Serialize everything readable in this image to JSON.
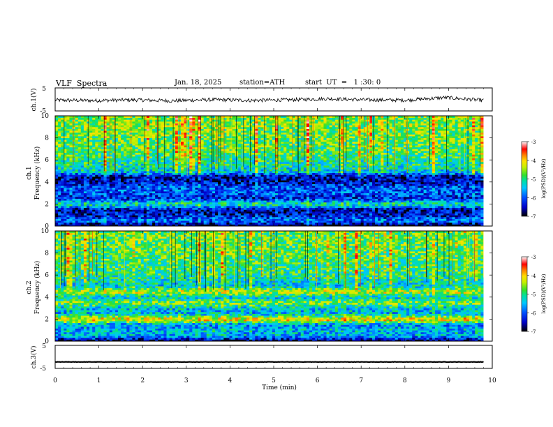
{
  "header": {
    "title": "VLF  Spectra",
    "date": "Jan. 18, 2025",
    "station": "station=ATH",
    "start_time": "start  UT  =   1 :30: 0"
  },
  "colors": {
    "spectrogram_bg": "#0d2ee0",
    "trace": "#000000",
    "colormap": [
      "#000000",
      "#0000c8",
      "#0050ff",
      "#00c8ff",
      "#00e0a0",
      "#30e030",
      "#c8f000",
      "#ffe000",
      "#ff8000",
      "#ff0000",
      "#ffffff"
    ]
  },
  "chart_data": [
    {
      "type": "line",
      "panel": "ch1-waveform",
      "ylabel": "ch.1(V)",
      "ylim": [
        -5,
        5
      ],
      "yticks": [
        "5",
        "-5"
      ],
      "xlim": [
        0,
        10
      ],
      "series": [
        {
          "values": [
            -0.3,
            -0.5,
            -0.2,
            -0.6,
            -0.1,
            -0.4,
            -0.2,
            0.3,
            -0.2,
            -0.3,
            0.8,
            -0.4
          ]
        }
      ]
    },
    {
      "type": "heatmap",
      "panel": "ch1-spectrogram",
      "ylabel": "ch.1\nFrequency (kHz)",
      "ylim": [
        0,
        10
      ],
      "yticks": [
        "0",
        "2",
        "4",
        "6",
        "8",
        "10"
      ],
      "xlim": [
        0,
        9.8
      ],
      "colorbar": {
        "label": "log(PSD)(V²/Hz)",
        "range": [
          -7,
          -3
        ],
        "ticks": [
          "-3",
          "-4",
          "-5",
          "-6",
          "-7"
        ]
      },
      "mean_level_by_freq_khz": [
        {
          "f": 0.0,
          "v": -7.0
        },
        {
          "f": 0.5,
          "v": -5.8
        },
        {
          "f": 1.0,
          "v": -6.4
        },
        {
          "f": 1.5,
          "v": -6.6
        },
        {
          "f": 2.0,
          "v": -5.0
        },
        {
          "f": 2.5,
          "v": -6.3
        },
        {
          "f": 3.0,
          "v": -6.0
        },
        {
          "f": 3.5,
          "v": -6.0
        },
        {
          "f": 4.0,
          "v": -6.5
        },
        {
          "f": 4.5,
          "v": -6.5
        },
        {
          "f": 5.0,
          "v": -5.3
        },
        {
          "f": 6.0,
          "v": -5.0
        },
        {
          "f": 7.0,
          "v": -4.8
        },
        {
          "f": 8.0,
          "v": -4.7
        },
        {
          "f": 9.0,
          "v": -4.6
        },
        {
          "f": 10.0,
          "v": -4.6
        }
      ]
    },
    {
      "type": "heatmap",
      "panel": "ch2-spectrogram",
      "ylabel": "ch.2\nFrequency (kHz)",
      "ylim": [
        0,
        10
      ],
      "yticks": [
        "0",
        "2",
        "4",
        "6",
        "8",
        "10"
      ],
      "xlim": [
        0,
        9.8
      ],
      "colorbar": {
        "label": "log(PSD)(V²/Hz)",
        "range": [
          -7,
          -3
        ],
        "ticks": [
          "-3",
          "-4",
          "-5",
          "-6",
          "-7"
        ]
      },
      "mean_level_by_freq_khz": [
        {
          "f": 0.0,
          "v": -7.0
        },
        {
          "f": 0.5,
          "v": -5.5
        },
        {
          "f": 1.0,
          "v": -5.5
        },
        {
          "f": 1.5,
          "v": -5.7
        },
        {
          "f": 2.0,
          "v": -4.0
        },
        {
          "f": 2.5,
          "v": -5.5
        },
        {
          "f": 3.0,
          "v": -5.4
        },
        {
          "f": 3.5,
          "v": -4.6
        },
        {
          "f": 4.0,
          "v": -5.4
        },
        {
          "f": 4.5,
          "v": -4.3
        },
        {
          "f": 5.0,
          "v": -5.4
        },
        {
          "f": 6.0,
          "v": -5.0
        },
        {
          "f": 7.0,
          "v": -4.9
        },
        {
          "f": 8.0,
          "v": -4.8
        },
        {
          "f": 9.0,
          "v": -4.7
        },
        {
          "f": 10.0,
          "v": -4.7
        }
      ]
    },
    {
      "type": "line",
      "panel": "ch3-waveform",
      "ylabel": "ch.3(V)",
      "ylim": [
        -5,
        5
      ],
      "yticks": [
        "5",
        "-5"
      ],
      "xlim": [
        0,
        10
      ],
      "series": [
        {
          "values": [
            -2.2,
            -2.2,
            -2.2,
            -2.2,
            -2.2,
            -2.2,
            -2.2,
            -2.2,
            -2.2,
            -2.2,
            -2.2,
            -2.2
          ]
        }
      ]
    }
  ],
  "xaxis": {
    "label": "Time  (min)",
    "range": [
      0,
      10
    ],
    "ticks": [
      "0",
      "1",
      "2",
      "3",
      "4",
      "5",
      "6",
      "7",
      "8",
      "9",
      "10"
    ]
  }
}
